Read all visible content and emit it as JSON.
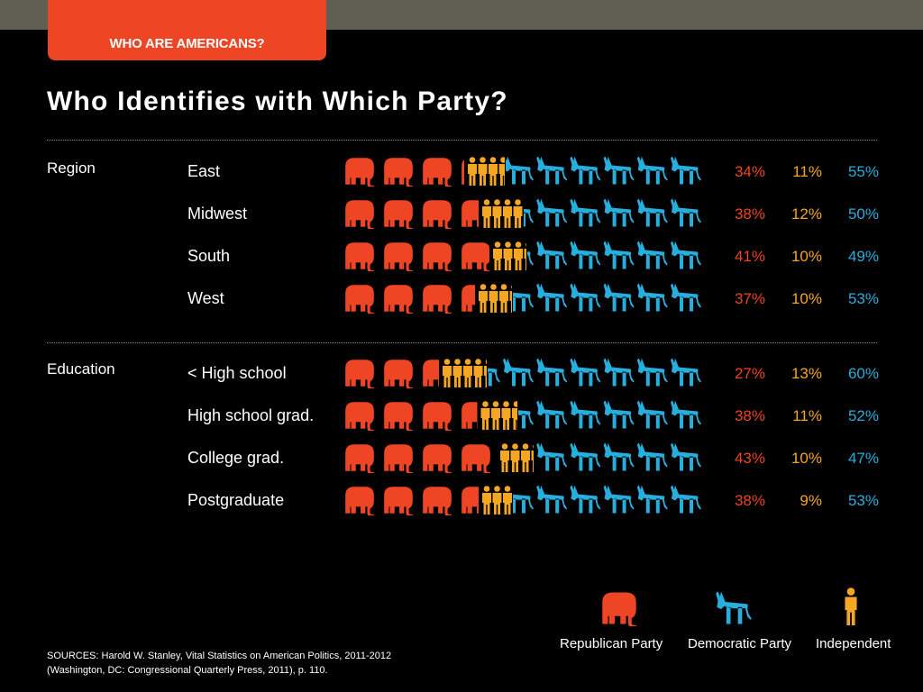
{
  "header": {
    "tab_label": "WHO ARE AMERICANS?"
  },
  "colors": {
    "republican": "#ee4524",
    "independent": "#f5a623",
    "democratic": "#28aedc"
  },
  "chart_data": {
    "type": "bar",
    "orientation": "horizontal",
    "stacked": true,
    "title": "Who Identifies with Which Party?",
    "value_unit": "%",
    "icons": {
      "republican": "elephant-icon",
      "democratic": "donkey-icon",
      "independent": "person-icon"
    },
    "groups": [
      {
        "label": "Region",
        "categories": [
          "East",
          "Midwest",
          "South",
          "West"
        ],
        "series": [
          {
            "name": "Republican Party",
            "values": [
              34,
              38,
              41,
              37
            ],
            "labels": [
              "34%",
              "38%",
              "41%",
              "37%"
            ]
          },
          {
            "name": "Independent",
            "values": [
              11,
              12,
              10,
              10
            ],
            "labels": [
              "11%",
              "12%",
              "10%",
              "10%"
            ]
          },
          {
            "name": "Democratic Party",
            "values": [
              55,
              50,
              49,
              53
            ],
            "labels": [
              "55%",
              "50%",
              "49%",
              "53%"
            ]
          }
        ]
      },
      {
        "label": "Education",
        "categories": [
          "< High school",
          "High school grad.",
          "College grad.",
          "Postgraduate"
        ],
        "series": [
          {
            "name": "Republican Party",
            "values": [
              27,
              38,
              43,
              38
            ],
            "labels": [
              "27%",
              "38%",
              "43%",
              "38%"
            ]
          },
          {
            "name": "Independent",
            "values": [
              13,
              11,
              10,
              9
            ],
            "labels": [
              "13%",
              "11%",
              "10%",
              "9%"
            ]
          },
          {
            "name": "Democratic Party",
            "values": [
              60,
              52,
              47,
              53
            ],
            "labels": [
              "60%",
              "52%",
              "47%",
              "53%"
            ]
          }
        ]
      }
    ],
    "legend": {
      "position": "bottom-right",
      "items": [
        {
          "name": "Republican Party",
          "icon": "elephant-icon"
        },
        {
          "name": "Democratic Party",
          "icon": "donkey-icon"
        },
        {
          "name": "Independent",
          "icon": "person-icon"
        }
      ]
    }
  },
  "source": {
    "line1": "SOURCES: Harold W. Stanley, Vital Statistics on American Politics, 2011-2012",
    "line2": "(Washington, DC: Congressional Quarterly Press, 2011), p. 110."
  }
}
